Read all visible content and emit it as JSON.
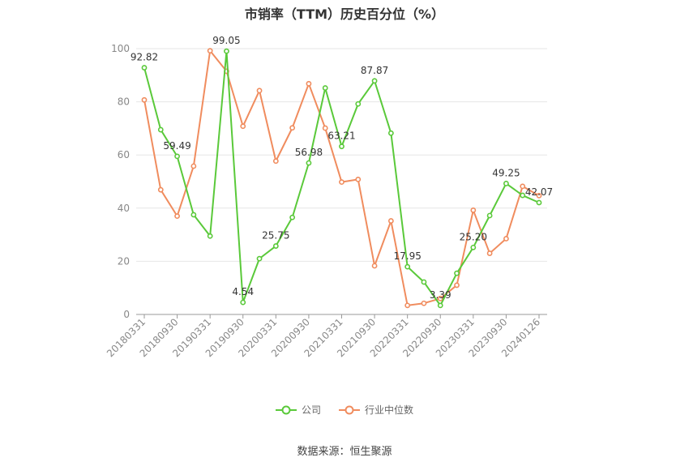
{
  "chart_data": {
    "type": "line",
    "title": "市销率（TTM）历史百分位（%）",
    "x_tick_labels": [
      "20180331",
      "20180930",
      "20190331",
      "20190930",
      "20200331",
      "20200930",
      "20210331",
      "20210930",
      "20220331",
      "20220930",
      "20230331",
      "20230930",
      "20240126"
    ],
    "y_ticks": [
      0,
      20,
      40,
      60,
      80,
      100
    ],
    "ylim": [
      0,
      100
    ],
    "grid": true,
    "legend_position": "bottom",
    "series": [
      {
        "name": "公司",
        "color": "#5ac93a",
        "values": [
          92.82,
          69.5,
          59.49,
          37.5,
          29.5,
          99.05,
          4.54,
          21.0,
          25.75,
          36.5,
          56.98,
          85.2,
          63.21,
          79.2,
          87.87,
          68.2,
          17.95,
          12.2,
          3.39,
          15.5,
          25.2,
          37.2,
          49.25,
          44.8,
          42.07
        ],
        "labels": {
          "0": "92.82",
          "2": "59.49",
          "5": "99.05",
          "6": "4.54",
          "8": "25.75",
          "10": "56.98",
          "12": "63.21",
          "14": "87.87",
          "16": "17.95",
          "18": "3.39",
          "20": "25.20",
          "22": "49.25",
          "24": "42.07"
        }
      },
      {
        "name": "行业中位数",
        "color": "#f08c5e",
        "values": [
          80.7,
          46.9,
          37.0,
          55.8,
          99.2,
          91.5,
          70.8,
          84.2,
          57.7,
          70.2,
          86.8,
          70.1,
          49.8,
          50.8,
          18.3,
          35.2,
          3.4,
          4.2,
          6.0,
          11.0,
          39.2,
          23.0,
          28.5,
          48.2,
          44.7
        ]
      }
    ],
    "footnote": "数据来源：恒生聚源"
  }
}
